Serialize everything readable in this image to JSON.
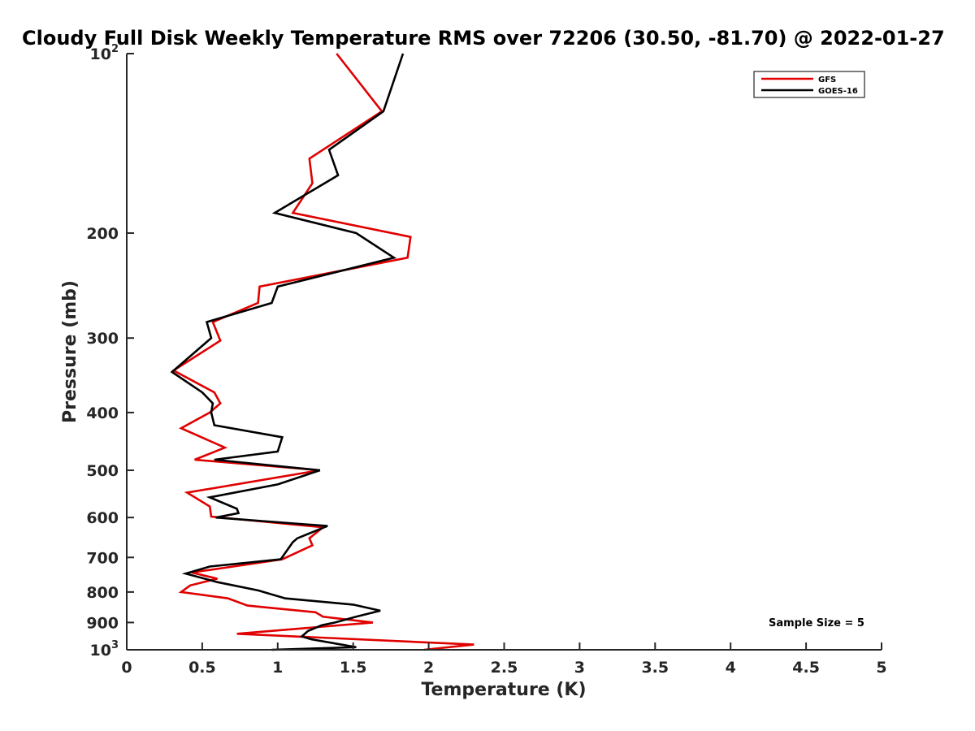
{
  "chart_data": {
    "type": "line",
    "title": "Cloudy Full Disk Weekly Temperature RMS over 72206 (30.50, -81.70) @ 2022-01-27",
    "xlabel": "Temperature (K)",
    "ylabel": "Pressure (mb)",
    "xlim": [
      0,
      5
    ],
    "ylim": [
      100,
      1000
    ],
    "y_scale": "log",
    "y_reversed": true,
    "grid": false,
    "legend_position": "top-right",
    "x_ticks": [
      0,
      0.5,
      1,
      1.5,
      2,
      2.5,
      3,
      3.5,
      4,
      4.5,
      5
    ],
    "x_tick_labels": [
      "0",
      "0.5",
      "1",
      "1.5",
      "2",
      "2.5",
      "3",
      "3.5",
      "4",
      "4.5",
      "5"
    ],
    "y_ticks": [
      100,
      200,
      300,
      400,
      500,
      600,
      700,
      800,
      900,
      1000
    ],
    "y_tick_labels": [
      {
        "base": "10",
        "exp": "2"
      },
      {
        "base": "200",
        "exp": ""
      },
      {
        "base": "300",
        "exp": ""
      },
      {
        "base": "400",
        "exp": ""
      },
      {
        "base": "500",
        "exp": ""
      },
      {
        "base": "600",
        "exp": ""
      },
      {
        "base": "700",
        "exp": ""
      },
      {
        "base": "800",
        "exp": ""
      },
      {
        "base": "900",
        "exp": ""
      },
      {
        "base": "10",
        "exp": "3"
      }
    ],
    "annotation": "Sample Size = 5",
    "series": [
      {
        "name": "GFS",
        "color": "#e00000",
        "points": [
          [
            1.39,
            100
          ],
          [
            1.69,
            125
          ],
          [
            1.21,
            150
          ],
          [
            1.23,
            165
          ],
          [
            1.1,
            185
          ],
          [
            1.88,
            203
          ],
          [
            1.86,
            220
          ],
          [
            0.88,
            246
          ],
          [
            0.87,
            262
          ],
          [
            0.57,
            282
          ],
          [
            0.62,
            303
          ],
          [
            0.31,
            340
          ],
          [
            0.58,
            370
          ],
          [
            0.62,
            386
          ],
          [
            0.55,
            400
          ],
          [
            0.36,
            425
          ],
          [
            0.65,
            458
          ],
          [
            0.45,
            480
          ],
          [
            1.28,
            500
          ],
          [
            0.4,
            545
          ],
          [
            0.55,
            575
          ],
          [
            0.56,
            598
          ],
          [
            1.3,
            623
          ],
          [
            1.21,
            650
          ],
          [
            1.23,
            668
          ],
          [
            1.03,
            705
          ],
          [
            0.43,
            742
          ],
          [
            0.6,
            760
          ],
          [
            0.42,
            780
          ],
          [
            0.36,
            800
          ],
          [
            0.67,
            820
          ],
          [
            0.8,
            843
          ],
          [
            1.25,
            865
          ],
          [
            1.3,
            880
          ],
          [
            1.63,
            900
          ],
          [
            0.73,
            940
          ],
          [
            2.3,
            980
          ],
          [
            1.97,
            1000
          ]
        ]
      },
      {
        "name": "GOES-16",
        "color": "#000000",
        "points": [
          [
            1.83,
            100
          ],
          [
            1.7,
            125
          ],
          [
            1.34,
            145
          ],
          [
            1.4,
            160
          ],
          [
            0.98,
            185
          ],
          [
            1.52,
            200
          ],
          [
            1.77,
            220
          ],
          [
            1.0,
            246
          ],
          [
            0.96,
            262
          ],
          [
            0.53,
            282
          ],
          [
            0.56,
            300
          ],
          [
            0.3,
            342
          ],
          [
            0.5,
            370
          ],
          [
            0.57,
            386
          ],
          [
            0.56,
            400
          ],
          [
            0.58,
            420
          ],
          [
            1.03,
            440
          ],
          [
            1.0,
            465
          ],
          [
            0.58,
            480
          ],
          [
            1.28,
            500
          ],
          [
            1.0,
            528
          ],
          [
            0.55,
            555
          ],
          [
            0.73,
            580
          ],
          [
            0.74,
            590
          ],
          [
            0.59,
            600
          ],
          [
            1.33,
            620
          ],
          [
            1.13,
            650
          ],
          [
            1.1,
            660
          ],
          [
            1.02,
            705
          ],
          [
            0.55,
            725
          ],
          [
            0.39,
            745
          ],
          [
            0.6,
            770
          ],
          [
            0.87,
            795
          ],
          [
            1.05,
            820
          ],
          [
            1.5,
            840
          ],
          [
            1.68,
            860
          ],
          [
            1.52,
            880
          ],
          [
            1.38,
            900
          ],
          [
            1.29,
            910
          ],
          [
            1.2,
            930
          ],
          [
            1.16,
            950
          ],
          [
            1.22,
            960
          ],
          [
            1.52,
            990
          ],
          [
            0.96,
            1000
          ]
        ]
      }
    ]
  }
}
